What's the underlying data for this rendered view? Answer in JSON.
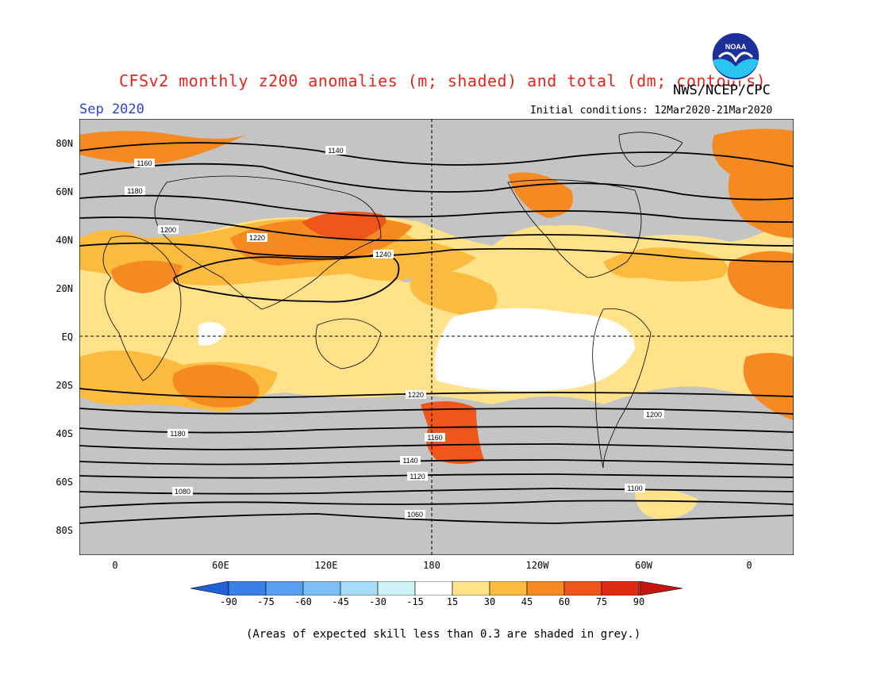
{
  "header": {
    "title": "CFSv2 monthly z200 anomalies (m; shaded) and total (dm; contours)",
    "month": "Sep 2020",
    "agency": "NWS/NCEP/CPC",
    "initial_conditions": "Initial conditions: 12Mar2020-21Mar2020",
    "logo_text": "NOAA"
  },
  "axes": {
    "lat_labels": [
      "80N",
      "60N",
      "40N",
      "20N",
      "EQ",
      "20S",
      "40S",
      "60S",
      "80S"
    ],
    "lon_labels": [
      "0",
      "60E",
      "120E",
      "180",
      "120W",
      "60W",
      "0"
    ]
  },
  "contour_labels": [
    "1140",
    "1160",
    "1180",
    "1200",
    "1220",
    "1240",
    "1220",
    "1200",
    "1180",
    "1160",
    "1140",
    "1120",
    "1100",
    "1080",
    "1060"
  ],
  "colorbar": {
    "labels": [
      "-90",
      "-75",
      "-60",
      "-45",
      "-30",
      "-15",
      "15",
      "30",
      "45",
      "60",
      "75",
      "90"
    ],
    "colors": [
      "#2060d8",
      "#3a80e6",
      "#58a0ef",
      "#7dbff5",
      "#a6dcf7",
      "#cdf2f8",
      "#ffffff",
      "#ffe28a",
      "#fbbb3f",
      "#f68a22",
      "#f0561a",
      "#e02a12",
      "#c4160e"
    ]
  },
  "footnote": "(Areas of expected skill less than 0.3 are shaded in grey.)",
  "colors": {
    "grey_mask": "#c4c4c4",
    "title": "#e8241a",
    "month": "#2f3fd8"
  }
}
